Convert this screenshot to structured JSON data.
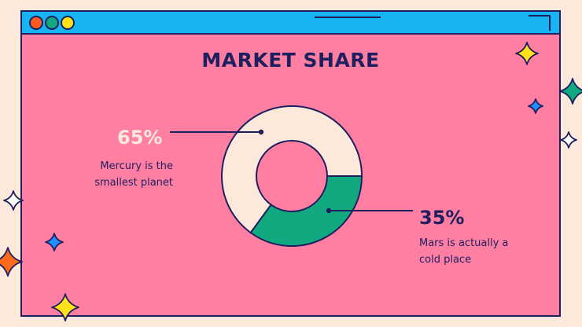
{
  "slide": {
    "title": "MARKET SHARE"
  },
  "window": {
    "dots": [
      "red",
      "green",
      "yellow"
    ]
  },
  "chart_data": {
    "type": "pie",
    "title": "MARKET SHARE",
    "slices": [
      {
        "value": 65,
        "label": "65%",
        "description": "Mercury is the smallest planet",
        "color": "#fde9dc"
      },
      {
        "value": 35,
        "label": "35%",
        "description": "Mars is actually a cold place",
        "color": "#13a980"
      }
    ],
    "donut": true
  },
  "callouts": {
    "left": {
      "percent": "65%",
      "line1": "Mercury is the",
      "line2": "smallest planet"
    },
    "right": {
      "percent": "35%",
      "line1": "Mars is actually a",
      "line2": "cold place"
    }
  },
  "colors": {
    "background": "#fde9dc",
    "window_bg": "#ff7fa3",
    "titlebar": "#18b4f2",
    "ink": "#1d1f5e",
    "green": "#13a980",
    "cream": "#fde9dc",
    "yellow": "#ffe21a",
    "orange": "#ff6a1a",
    "blue": "#1f8fff"
  },
  "decorations": {
    "sparkle_icon": "four-point-star-icon"
  }
}
